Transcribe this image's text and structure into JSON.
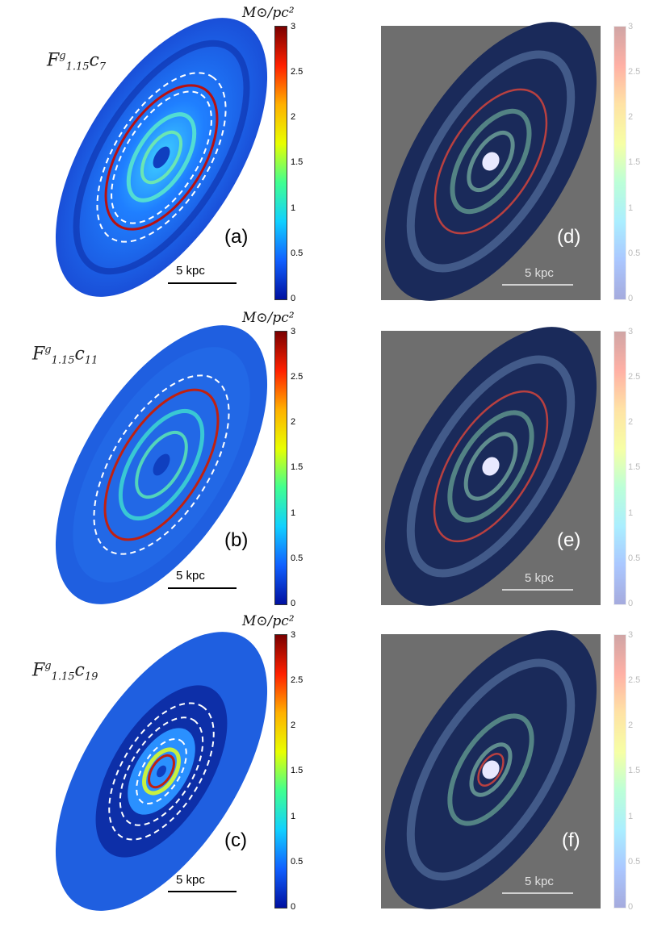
{
  "colorbar": {
    "unit": "M⊙/pc²",
    "ticks": [
      "3",
      "2.5",
      "2",
      "1.5",
      "1",
      "0.5",
      "0"
    ]
  },
  "panels_left": [
    {
      "model_base": "F",
      "model_sup": "g",
      "model_sub": "1.15",
      "model_c": "c",
      "model_c_sub": "7",
      "letter": "(a)",
      "scale": "5 kpc"
    },
    {
      "model_base": "F",
      "model_sup": "g",
      "model_sub": "1.15",
      "model_c": "c",
      "model_c_sub": "11",
      "letter": "(b)",
      "scale": "5 kpc"
    },
    {
      "model_base": "F",
      "model_sup": "g",
      "model_sub": "1.15",
      "model_c": "c",
      "model_c_sub": "19",
      "letter": "(c)",
      "scale": "5 kpc"
    }
  ],
  "panels_right": [
    {
      "letter": "(d)",
      "scale": "5 kpc"
    },
    {
      "letter": "(e)",
      "scale": "5 kpc"
    },
    {
      "letter": "(f)",
      "scale": "5 kpc"
    }
  ],
  "colors": {
    "disk_blue": "#1f5fe0",
    "dark_blue": "#0a1f7a",
    "ring_red": "#b81010",
    "photo_bg": "#6e6e6e"
  }
}
